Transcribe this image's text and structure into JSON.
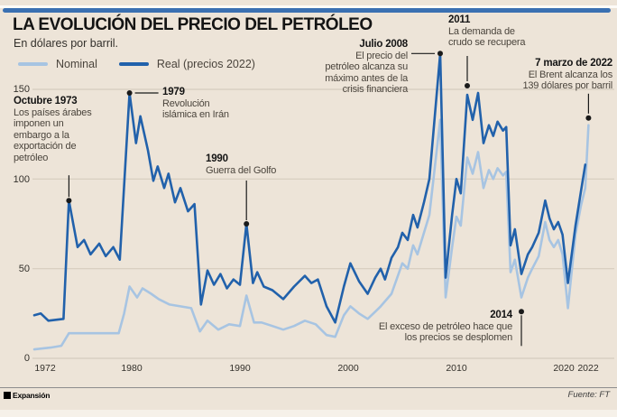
{
  "header": {
    "title": "LA EVOLUCIÓN DEL PRECIO DEL PETRÓLEO",
    "subtitle": "En dólares por barril."
  },
  "legend": {
    "nominal": "Nominal",
    "real": "Real (precios 2022)"
  },
  "footer": {
    "brand": "Expansión",
    "source": "Fuente: FT"
  },
  "colors": {
    "background": "#ede4d8",
    "grid": "#d6ccbe",
    "nominal": "#a7c4e2",
    "real": "#2161ab",
    "annotation": "#1a1a1a",
    "top_rule": "#3a70b2"
  },
  "chart_data": {
    "type": "line",
    "title": "LA EVOLUCIÓN DEL PRECIO DEL PETRÓLEO",
    "subtitle": "En dólares por barril.",
    "grid": true,
    "legend_position": "top-left",
    "x_axis": {
      "range": [
        1971,
        2022.3
      ],
      "ticks": [
        1972,
        1980,
        1990,
        2000,
        2010,
        2020,
        2022
      ],
      "tick_labels": [
        "1972",
        "1980",
        "1990",
        "2000",
        "2010",
        "2020",
        "2022"
      ]
    },
    "y_axis": {
      "range": [
        0,
        175
      ],
      "ticks": [
        0,
        50,
        100,
        150
      ],
      "tick_labels": [
        "150",
        "100",
        "50",
        "0"
      ]
    },
    "series": [
      {
        "name": "Nominal",
        "color": "#a7c4e2",
        "points": [
          [
            1971,
            5
          ],
          [
            1972.5,
            6
          ],
          [
            1973.5,
            7
          ],
          [
            1974.2,
            14
          ],
          [
            1978.8,
            14
          ],
          [
            1979.3,
            25
          ],
          [
            1979.8,
            40
          ],
          [
            1980.5,
            34
          ],
          [
            1981,
            39
          ],
          [
            1981.8,
            36
          ],
          [
            1982.5,
            33
          ],
          [
            1983.5,
            30
          ],
          [
            1984.5,
            29
          ],
          [
            1985.5,
            28
          ],
          [
            1986.3,
            15
          ],
          [
            1987,
            21
          ],
          [
            1988,
            16
          ],
          [
            1989,
            19
          ],
          [
            1990,
            18
          ],
          [
            1990.6,
            35
          ],
          [
            1991.3,
            20
          ],
          [
            1992,
            20
          ],
          [
            1993,
            18
          ],
          [
            1994,
            16
          ],
          [
            1995,
            18
          ],
          [
            1996,
            21
          ],
          [
            1997,
            19
          ],
          [
            1998,
            13
          ],
          [
            1998.8,
            12
          ],
          [
            1999.6,
            24
          ],
          [
            2000.2,
            29
          ],
          [
            2001,
            25
          ],
          [
            2001.8,
            22
          ],
          [
            2002.5,
            26
          ],
          [
            2003,
            29
          ],
          [
            2004,
            36
          ],
          [
            2005,
            53
          ],
          [
            2005.5,
            50
          ],
          [
            2006,
            63
          ],
          [
            2006.4,
            58
          ],
          [
            2007,
            70
          ],
          [
            2007.5,
            80
          ],
          [
            2008.5,
            133
          ],
          [
            2009,
            34
          ],
          [
            2009.6,
            62
          ],
          [
            2010,
            79
          ],
          [
            2010.4,
            74
          ],
          [
            2011,
            112
          ],
          [
            2011.5,
            103
          ],
          [
            2012,
            115
          ],
          [
            2012.5,
            95
          ],
          [
            2013,
            105
          ],
          [
            2013.4,
            100
          ],
          [
            2013.8,
            106
          ],
          [
            2014.3,
            102
          ],
          [
            2014.6,
            104
          ],
          [
            2015,
            48
          ],
          [
            2015.4,
            55
          ],
          [
            2016,
            34
          ],
          [
            2016.6,
            45
          ],
          [
            2017,
            50
          ],
          [
            2017.6,
            57
          ],
          [
            2018.2,
            76
          ],
          [
            2018.6,
            66
          ],
          [
            2019,
            62
          ],
          [
            2019.4,
            66
          ],
          [
            2019.8,
            58
          ],
          [
            2020.3,
            28
          ],
          [
            2021,
            69
          ],
          [
            2021.5,
            85
          ],
          [
            2021.9,
            95
          ],
          [
            2022.2,
            130
          ]
        ]
      },
      {
        "name": "Real (precios 2022)",
        "color": "#2161ab",
        "points": [
          [
            1971,
            24
          ],
          [
            1971.6,
            25
          ],
          [
            1972.3,
            21
          ],
          [
            1973.7,
            22
          ],
          [
            1974.2,
            88
          ],
          [
            1975,
            62
          ],
          [
            1975.6,
            66
          ],
          [
            1976.2,
            58
          ],
          [
            1977,
            64
          ],
          [
            1977.6,
            57
          ],
          [
            1978.3,
            62
          ],
          [
            1978.9,
            55
          ],
          [
            1979.8,
            148
          ],
          [
            1980.4,
            120
          ],
          [
            1980.8,
            135
          ],
          [
            1981.5,
            116
          ],
          [
            1982,
            99
          ],
          [
            1982.4,
            107
          ],
          [
            1983,
            95
          ],
          [
            1983.4,
            103
          ],
          [
            1984,
            87
          ],
          [
            1984.5,
            95
          ],
          [
            1985.2,
            82
          ],
          [
            1985.8,
            86
          ],
          [
            1986.4,
            30
          ],
          [
            1987,
            49
          ],
          [
            1987.6,
            41
          ],
          [
            1988.2,
            47
          ],
          [
            1988.8,
            39
          ],
          [
            1989.4,
            44
          ],
          [
            1990,
            41
          ],
          [
            1990.6,
            75
          ],
          [
            1991.2,
            42
          ],
          [
            1991.6,
            48
          ],
          [
            1992.2,
            40
          ],
          [
            1993,
            38
          ],
          [
            1994,
            33
          ],
          [
            1995,
            40
          ],
          [
            1996,
            46
          ],
          [
            1996.6,
            42
          ],
          [
            1997.2,
            44
          ],
          [
            1998,
            29
          ],
          [
            1998.8,
            20
          ],
          [
            1999.6,
            40
          ],
          [
            2000.2,
            53
          ],
          [
            2001,
            43
          ],
          [
            2001.8,
            36
          ],
          [
            2002.5,
            45
          ],
          [
            2003,
            50
          ],
          [
            2003.4,
            44
          ],
          [
            2004,
            56
          ],
          [
            2004.6,
            62
          ],
          [
            2005,
            70
          ],
          [
            2005.5,
            66
          ],
          [
            2006,
            80
          ],
          [
            2006.4,
            73
          ],
          [
            2007,
            87
          ],
          [
            2007.5,
            100
          ],
          [
            2008.5,
            170
          ],
          [
            2009,
            45
          ],
          [
            2009.6,
            80
          ],
          [
            2010,
            100
          ],
          [
            2010.4,
            92
          ],
          [
            2011,
            147
          ],
          [
            2011.5,
            133
          ],
          [
            2012,
            148
          ],
          [
            2012.5,
            120
          ],
          [
            2013,
            130
          ],
          [
            2013.4,
            124
          ],
          [
            2013.8,
            132
          ],
          [
            2014.3,
            127
          ],
          [
            2014.6,
            129
          ],
          [
            2015,
            63
          ],
          [
            2015.4,
            72
          ],
          [
            2016,
            47
          ],
          [
            2016.6,
            58
          ],
          [
            2017,
            62
          ],
          [
            2017.6,
            70
          ],
          [
            2018.2,
            88
          ],
          [
            2018.6,
            78
          ],
          [
            2019,
            72
          ],
          [
            2019.4,
            76
          ],
          [
            2019.8,
            69
          ],
          [
            2020.3,
            42
          ],
          [
            2021,
            74
          ],
          [
            2021.5,
            93
          ],
          [
            2021.9,
            108
          ]
        ]
      }
    ],
    "annotations": {
      "oct1973": {
        "title": "Octubre 1973",
        "lines": [
          "Los países árabes",
          "imponen un",
          "embargo a la",
          "exportación de",
          "petróleo"
        ],
        "anchor_year": 1974.2,
        "anchor_value": 88
      },
      "y1979": {
        "title": "1979",
        "lines": [
          "Revolución",
          "islámica en Irán"
        ],
        "anchor_year": 1979.8,
        "anchor_value": 148
      },
      "y1990": {
        "title": "1990",
        "lines": [
          "Guerra del Golfo"
        ],
        "anchor_year": 1990.6,
        "anchor_value": 75
      },
      "jul2008": {
        "title": "Julio 2008",
        "lines": [
          "El precio del",
          "petróleo alcanza su",
          "máximo antes de la",
          "crisis financiera"
        ],
        "anchor_year": 2008.5,
        "anchor_value": 170
      },
      "y2011": {
        "title": "2011",
        "lines": [
          "La demanda de",
          "crudo se recupera"
        ],
        "anchor_year": 2011,
        "anchor_value": 152
      },
      "y2014": {
        "title": "2014",
        "lines": [
          "El exceso de petróleo hace que",
          "los precios se desplomen"
        ],
        "anchor_year": 2016,
        "anchor_value": 26
      },
      "mar2022": {
        "title": "7 marzo de 2022",
        "lines": [
          "El Brent alcanza los",
          "139 dólares por barril"
        ],
        "anchor_year": 2022.2,
        "anchor_value": 134
      }
    }
  }
}
